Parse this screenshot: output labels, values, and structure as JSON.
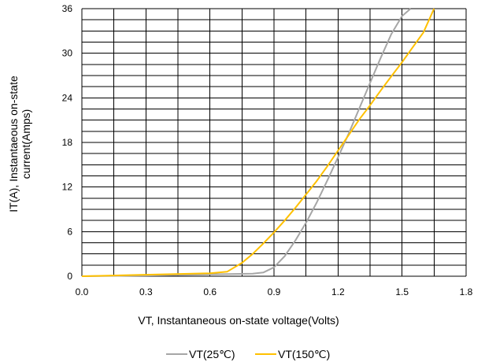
{
  "chart_data": {
    "type": "line",
    "xlabel": "VT, Instantaneous  on-state voltage(Volts)",
    "ylabel_lines": [
      "IT(A), Instantaeous on-state",
      "current(Amps)"
    ],
    "xlim": [
      0,
      1.8
    ],
    "ylim": [
      0,
      36
    ],
    "x_ticks": [
      0,
      0.3,
      0.6,
      0.9,
      1.2,
      1.5,
      1.8
    ],
    "x_tick_labels": [
      "0.0",
      "0.3",
      "0.6",
      "0.9",
      "1.2",
      "1.5",
      "1.8"
    ],
    "y_ticks": [
      0,
      6,
      12,
      18,
      24,
      30,
      36
    ],
    "y_tick_labels": [
      "0",
      "6",
      "12",
      "18",
      "24",
      "30",
      "36"
    ],
    "grid": true,
    "legend_position": "bottom",
    "series": [
      {
        "name": "VT(25℃)",
        "color": "#a6a6a6",
        "x": [
          0.0,
          0.3,
          0.6,
          0.8,
          0.85,
          0.9,
          0.95,
          1.0,
          1.05,
          1.1,
          1.15,
          1.2,
          1.25,
          1.3,
          1.35,
          1.4,
          1.45,
          1.5,
          1.54
        ],
        "y": [
          0.0,
          0.1,
          0.25,
          0.35,
          0.5,
          1.2,
          2.7,
          4.8,
          7.2,
          9.9,
          12.9,
          16.0,
          19.2,
          22.6,
          26.0,
          29.4,
          32.6,
          35.0,
          36.0
        ]
      },
      {
        "name": "VT(150℃)",
        "color": "#ffc000",
        "x": [
          0.0,
          0.3,
          0.6,
          0.68,
          0.75,
          0.8,
          0.85,
          0.9,
          0.95,
          1.0,
          1.05,
          1.1,
          1.15,
          1.2,
          1.25,
          1.3,
          1.35,
          1.4,
          1.45,
          1.5,
          1.55,
          1.6,
          1.65
        ],
        "y": [
          0.0,
          0.2,
          0.4,
          0.6,
          1.8,
          3.0,
          4.4,
          5.9,
          7.5,
          9.2,
          11.0,
          12.8,
          14.8,
          16.9,
          19.0,
          21.1,
          23.0,
          25.0,
          26.9,
          28.8,
          30.8,
          32.8,
          36.0
        ]
      }
    ]
  }
}
